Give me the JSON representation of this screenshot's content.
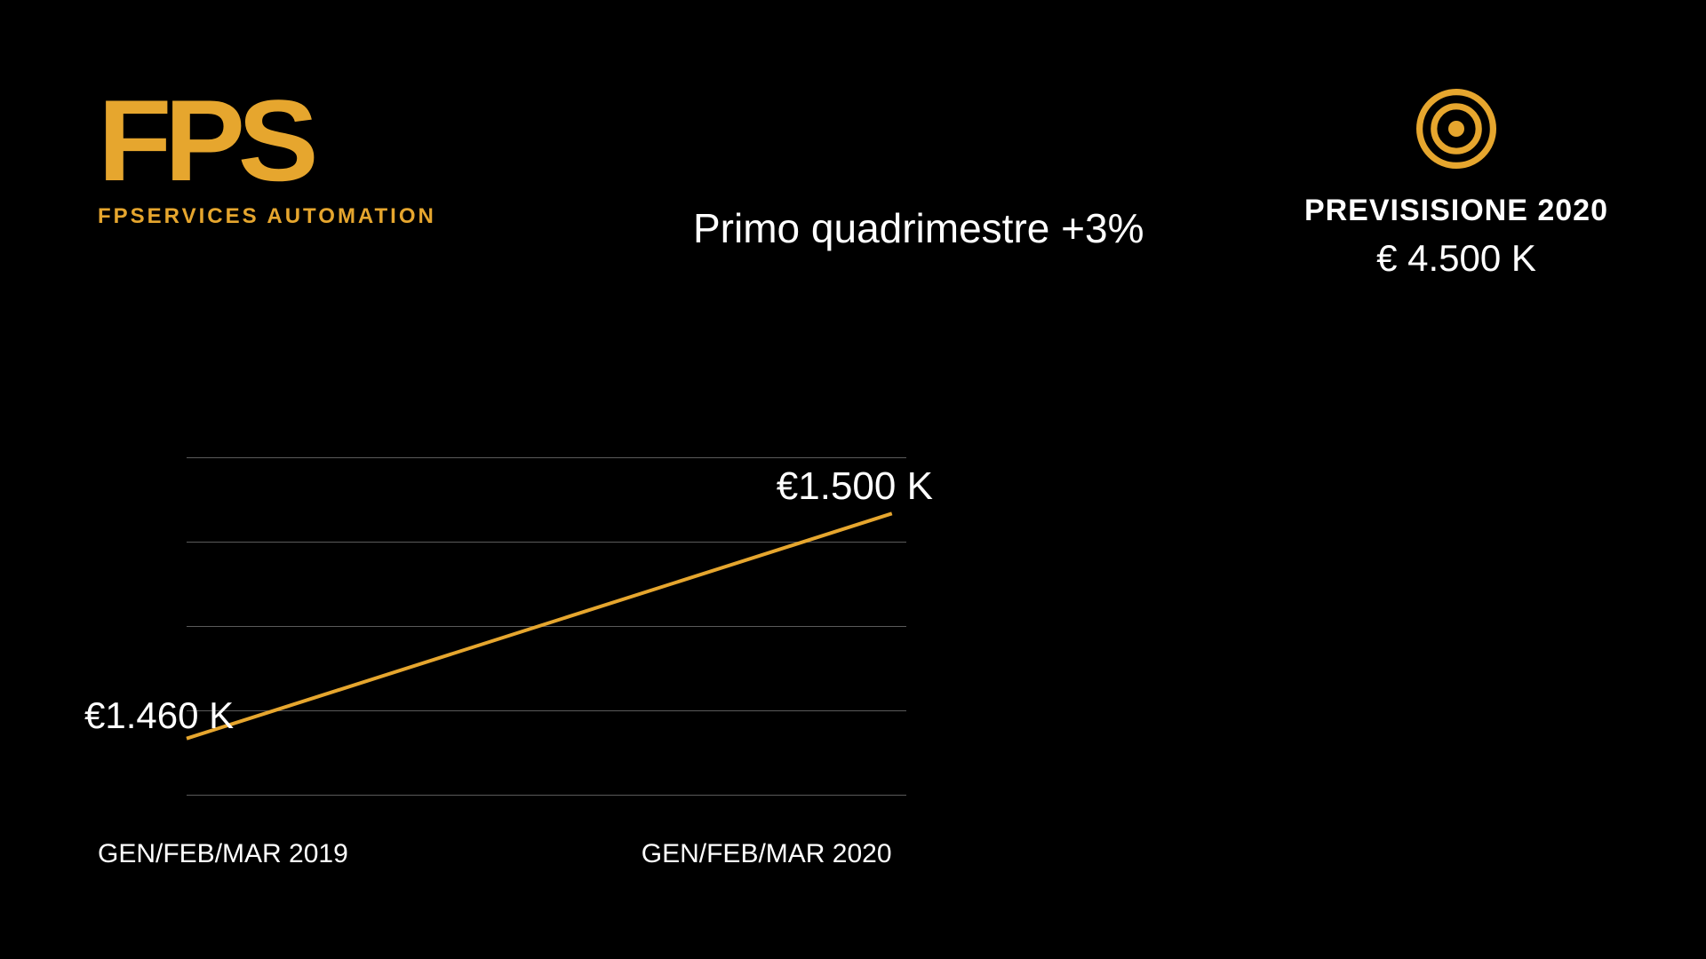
{
  "brand": {
    "logo_text": "FPS",
    "logo_sub": "FPSERVICES AUTOMATION",
    "logo_color": "#e6a62e"
  },
  "headline": "Primo quadrimestre +3%",
  "forecast": {
    "title": "PREVISISIONE  2020",
    "value": "€ 4.500 K",
    "icon_color": "#e6a62e"
  },
  "chart": {
    "type": "line",
    "background_color": "#000000",
    "grid_color": "#5a5a5a",
    "line_color": "#e6a62e",
    "line_width": 4,
    "gridline_count": 5,
    "x_categories": [
      "GEN/FEB/MAR 2019",
      "GEN/FEB/MAR 2020"
    ],
    "points": [
      {
        "label": "€1.460  K",
        "value": 1460
      },
      {
        "label": "€1.500  K",
        "value": 1500
      }
    ],
    "ylim": [
      1450,
      1510
    ],
    "label_fontsize": 42,
    "axis_fontsize": 30,
    "text_color": "#ffffff"
  }
}
